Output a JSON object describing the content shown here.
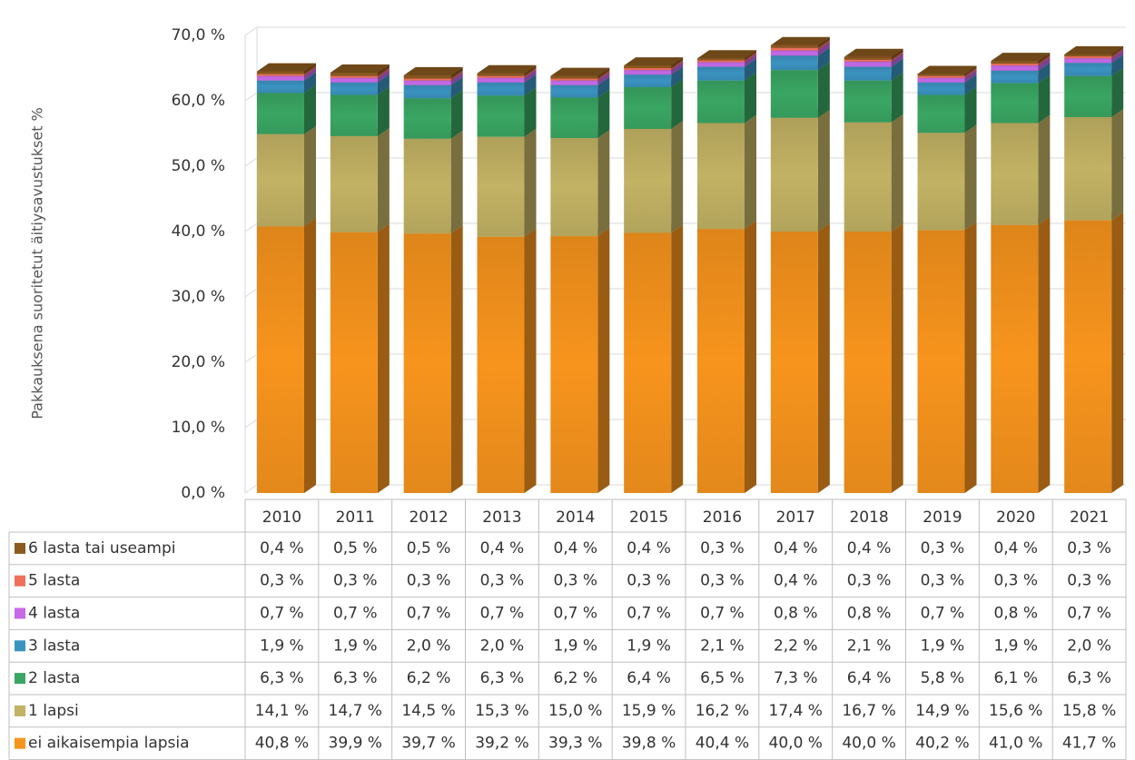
{
  "chart_data": {
    "type": "bar3d_stacked",
    "y_label": "Pakkauksena suoritetut äitiysavustukset %",
    "categories": [
      "2010",
      "2011",
      "2012",
      "2013",
      "2014",
      "2015",
      "2016",
      "2017",
      "2018",
      "2019",
      "2020",
      "2021"
    ],
    "ylim": [
      0,
      70
    ],
    "yticks": [
      {
        "value": 0,
        "label": "0,0 %"
      },
      {
        "value": 10,
        "label": "10,0 %"
      },
      {
        "value": 20,
        "label": "20,0 %"
      },
      {
        "value": 30,
        "label": "30,0 %"
      },
      {
        "value": 40,
        "label": "40,0 %"
      },
      {
        "value": 50,
        "label": "50,0 %"
      },
      {
        "value": 60,
        "label": "60,0 %"
      },
      {
        "value": 70,
        "label": "70,0 %"
      }
    ],
    "grid": true,
    "series": [
      {
        "name": "ei aikaisempia lapsia",
        "color": "#f7941d",
        "values": [
          40.8,
          39.9,
          39.7,
          39.2,
          39.3,
          39.8,
          40.4,
          40.0,
          40.0,
          40.2,
          41.0,
          41.7
        ],
        "value_labels": [
          "40,8 %",
          "39,9 %",
          "39,7 %",
          "39,2 %",
          "39,3 %",
          "39,8 %",
          "40,4 %",
          "40,0 %",
          "40,0 %",
          "40,2 %",
          "41,0 %",
          "41,7 %"
        ]
      },
      {
        "name": "1 lapsi",
        "color": "#c2b264",
        "values": [
          14.1,
          14.7,
          14.5,
          15.3,
          15.0,
          15.9,
          16.2,
          17.4,
          16.7,
          14.9,
          15.6,
          15.8
        ],
        "value_labels": [
          "14,1 %",
          "14,7 %",
          "14,5 %",
          "15,3 %",
          "15,0 %",
          "15,9 %",
          "16,2 %",
          "17,4 %",
          "16,7 %",
          "14,9 %",
          "15,6 %",
          "15,8 %"
        ]
      },
      {
        "name": "2 lasta",
        "color": "#3aa663",
        "values": [
          6.3,
          6.3,
          6.2,
          6.3,
          6.2,
          6.4,
          6.5,
          7.3,
          6.4,
          5.8,
          6.1,
          6.3
        ],
        "value_labels": [
          "6,3 %",
          "6,3 %",
          "6,2 %",
          "6,3 %",
          "6,2 %",
          "6,4 %",
          "6,5 %",
          "7,3 %",
          "6,4 %",
          "5,8 %",
          "6,1 %",
          "6,3 %"
        ]
      },
      {
        "name": "3 lasta",
        "color": "#3b93c0",
        "values": [
          1.9,
          1.9,
          2.0,
          2.0,
          1.9,
          1.9,
          2.1,
          2.2,
          2.1,
          1.9,
          1.9,
          2.0
        ],
        "value_labels": [
          "1,9 %",
          "1,9 %",
          "2,0 %",
          "2,0 %",
          "1,9 %",
          "1,9 %",
          "2,1 %",
          "2,2 %",
          "2,1 %",
          "1,9 %",
          "1,9 %",
          "2,0 %"
        ]
      },
      {
        "name": "4 lasta",
        "color": "#c66ae8",
        "values": [
          0.7,
          0.7,
          0.7,
          0.7,
          0.7,
          0.7,
          0.7,
          0.8,
          0.8,
          0.7,
          0.8,
          0.7
        ],
        "value_labels": [
          "0,7 %",
          "0,7 %",
          "0,7 %",
          "0,7 %",
          "0,7 %",
          "0,7 %",
          "0,7 %",
          "0,8 %",
          "0,8 %",
          "0,7 %",
          "0,8 %",
          "0,7 %"
        ]
      },
      {
        "name": "5 lasta",
        "color": "#f0705c",
        "values": [
          0.3,
          0.3,
          0.3,
          0.3,
          0.3,
          0.3,
          0.3,
          0.4,
          0.3,
          0.3,
          0.3,
          0.3
        ],
        "value_labels": [
          "0,3 %",
          "0,3 %",
          "0,3 %",
          "0,3 %",
          "0,3 %",
          "0,3 %",
          "0,3 %",
          "0,4 %",
          "0,3 %",
          "0,3 %",
          "0,3 %",
          "0,3 %"
        ]
      },
      {
        "name": "6 lasta tai useampi",
        "color": "#8a5a1e",
        "values": [
          0.4,
          0.5,
          0.5,
          0.4,
          0.4,
          0.4,
          0.3,
          0.4,
          0.4,
          0.3,
          0.4,
          0.3
        ],
        "value_labels": [
          "0,4 %",
          "0,5 %",
          "0,5 %",
          "0,4 %",
          "0,4 %",
          "0,4 %",
          "0,3 %",
          "0,4 %",
          "0,4 %",
          "0,3 %",
          "0,4 %",
          "0,3 %"
        ]
      }
    ]
  }
}
